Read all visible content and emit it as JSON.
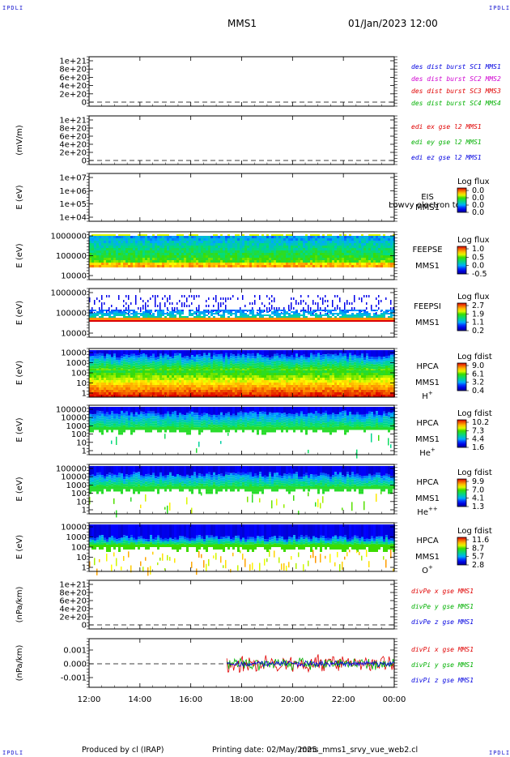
{
  "corner_label": "IPDLI",
  "header": {
    "spacecraft": "MMS1",
    "datetime": "01/Jan/2023 12:00"
  },
  "footer": {
    "produced": "Produced by cl (IRAP)",
    "printing": "Printing date: 02/May/2025",
    "script": "mms_mms1_srvy_vue_web2.cl"
  },
  "x_ticks": [
    "12:00",
    "14:00",
    "16:00",
    "18:00",
    "20:00",
    "22:00",
    "00:00"
  ],
  "colors": {
    "red": "#e00000",
    "green": "#00b000",
    "blue": "#0000e0",
    "magenta": "#d000d0"
  },
  "chart_data": [
    {
      "id": "p1",
      "type": "line",
      "ylabel": "",
      "y_ticks": [
        "1e+21",
        "8e+20",
        "6e+20",
        "4e+20",
        "2e+20",
        "0"
      ],
      "series": [
        {
          "name": "des dist burst SC1 MMS1",
          "color": "blue"
        },
        {
          "name": "des dist burst SC2 MMS2",
          "color": "magenta"
        },
        {
          "name": "des dist burst SC3 MMS3",
          "color": "red"
        },
        {
          "name": "des dist burst SC4 MMS4",
          "color": "green"
        }
      ]
    },
    {
      "id": "p2",
      "type": "line",
      "ylabel": "(mV/m)",
      "y_ticks": [
        "1e+21",
        "8e+20",
        "6e+20",
        "4e+20",
        "2e+20",
        "0"
      ],
      "series": [
        {
          "name": "edi ex gse l2 MMS1",
          "color": "red"
        },
        {
          "name": "edi ey gse l2 MMS1",
          "color": "green"
        },
        {
          "name": "edi ez gse l2 MMS1",
          "color": "blue"
        }
      ]
    },
    {
      "id": "p3",
      "type": "heatmap",
      "ylabel": "E (eV)",
      "y_ticks": [
        "1e+07",
        "1e+06",
        "1e+05",
        "1e+04"
      ],
      "labels": [
        "EIS",
        "MMS1"
      ],
      "overlay_text": "Lowvy electron to",
      "cbar_title": "Log flux",
      "cbar_ticks": [
        "0.0",
        "0.0",
        "0.0",
        "0.0"
      ],
      "style": "empty"
    },
    {
      "id": "p4",
      "type": "heatmap",
      "ylabel": "E (eV)",
      "y_ticks": [
        "1000000",
        "100000",
        "10000"
      ],
      "labels": [
        "FEEPSE",
        "MMS1"
      ],
      "cbar_title": "Log flux",
      "cbar_ticks": [
        "1.0",
        "0.5",
        "0.0",
        "-0.5"
      ],
      "style": "feepse"
    },
    {
      "id": "p5",
      "type": "heatmap",
      "ylabel": "E (eV)",
      "y_ticks": [
        "1000000",
        "100000",
        "10000"
      ],
      "labels": [
        "FEEPSI",
        "MMS1"
      ],
      "cbar_title": "Log flux",
      "cbar_ticks": [
        "2.7",
        "1.9",
        "1.1",
        "0.2"
      ],
      "style": "feepsi"
    },
    {
      "id": "p6",
      "type": "heatmap",
      "ylabel": "E (eV)",
      "y_ticks": [
        "10000",
        "1000",
        "100",
        "10",
        "1"
      ],
      "labels": [
        "HPCA",
        "MMS1",
        "H+"
      ],
      "cbar_title": "Log fdist",
      "cbar_ticks": [
        "9.0",
        "6.1",
        "3.2",
        "0.4"
      ],
      "style": "hplus"
    },
    {
      "id": "p7",
      "type": "heatmap",
      "ylabel": "E (eV)",
      "y_ticks": [
        "100000",
        "10000",
        "1000",
        "100",
        "10",
        "1"
      ],
      "labels": [
        "HPCA",
        "MMS1",
        "He+"
      ],
      "cbar_title": "Log fdist",
      "cbar_ticks": [
        "10.2",
        "7.3",
        "4.4",
        "1.6"
      ],
      "style": "heplus"
    },
    {
      "id": "p8",
      "type": "heatmap",
      "ylabel": "E (eV)",
      "y_ticks": [
        "100000",
        "10000",
        "1000",
        "100",
        "10",
        "1"
      ],
      "labels": [
        "HPCA",
        "MMS1",
        "He++"
      ],
      "cbar_title": "Log fdist",
      "cbar_ticks": [
        "9.9",
        "7.0",
        "4.1",
        "1.3"
      ],
      "style": "hepp"
    },
    {
      "id": "p9",
      "type": "heatmap",
      "ylabel": "E (eV)",
      "y_ticks": [
        "10000",
        "1000",
        "100",
        "10",
        "1"
      ],
      "labels": [
        "HPCA",
        "MMS1",
        "O+"
      ],
      "cbar_title": "Log fdist",
      "cbar_ticks": [
        "11.6",
        "8.7",
        "5.7",
        "2.8"
      ],
      "style": "oplus"
    },
    {
      "id": "p10",
      "type": "line",
      "ylabel": "(nPa/km)",
      "y_ticks": [
        "1e+21",
        "8e+20",
        "6e+20",
        "4e+20",
        "2e+20",
        "0"
      ],
      "series": [
        {
          "name": "divPe x gse MMS1",
          "color": "red"
        },
        {
          "name": "divPe y gse MMS1",
          "color": "green"
        },
        {
          "name": "divPe z gse MMS1",
          "color": "blue"
        }
      ]
    },
    {
      "id": "p11",
      "type": "line",
      "ylabel": "(nPa/km)",
      "y_ticks": [
        "0.001",
        "0.000",
        "-0.001"
      ],
      "series": [
        {
          "name": "divPi x gse MMS1",
          "color": "red"
        },
        {
          "name": "divPi y gse MMS1",
          "color": "green"
        },
        {
          "name": "divPi z gse MMS1",
          "color": "blue"
        }
      ],
      "data_start": "17:25"
    }
  ]
}
